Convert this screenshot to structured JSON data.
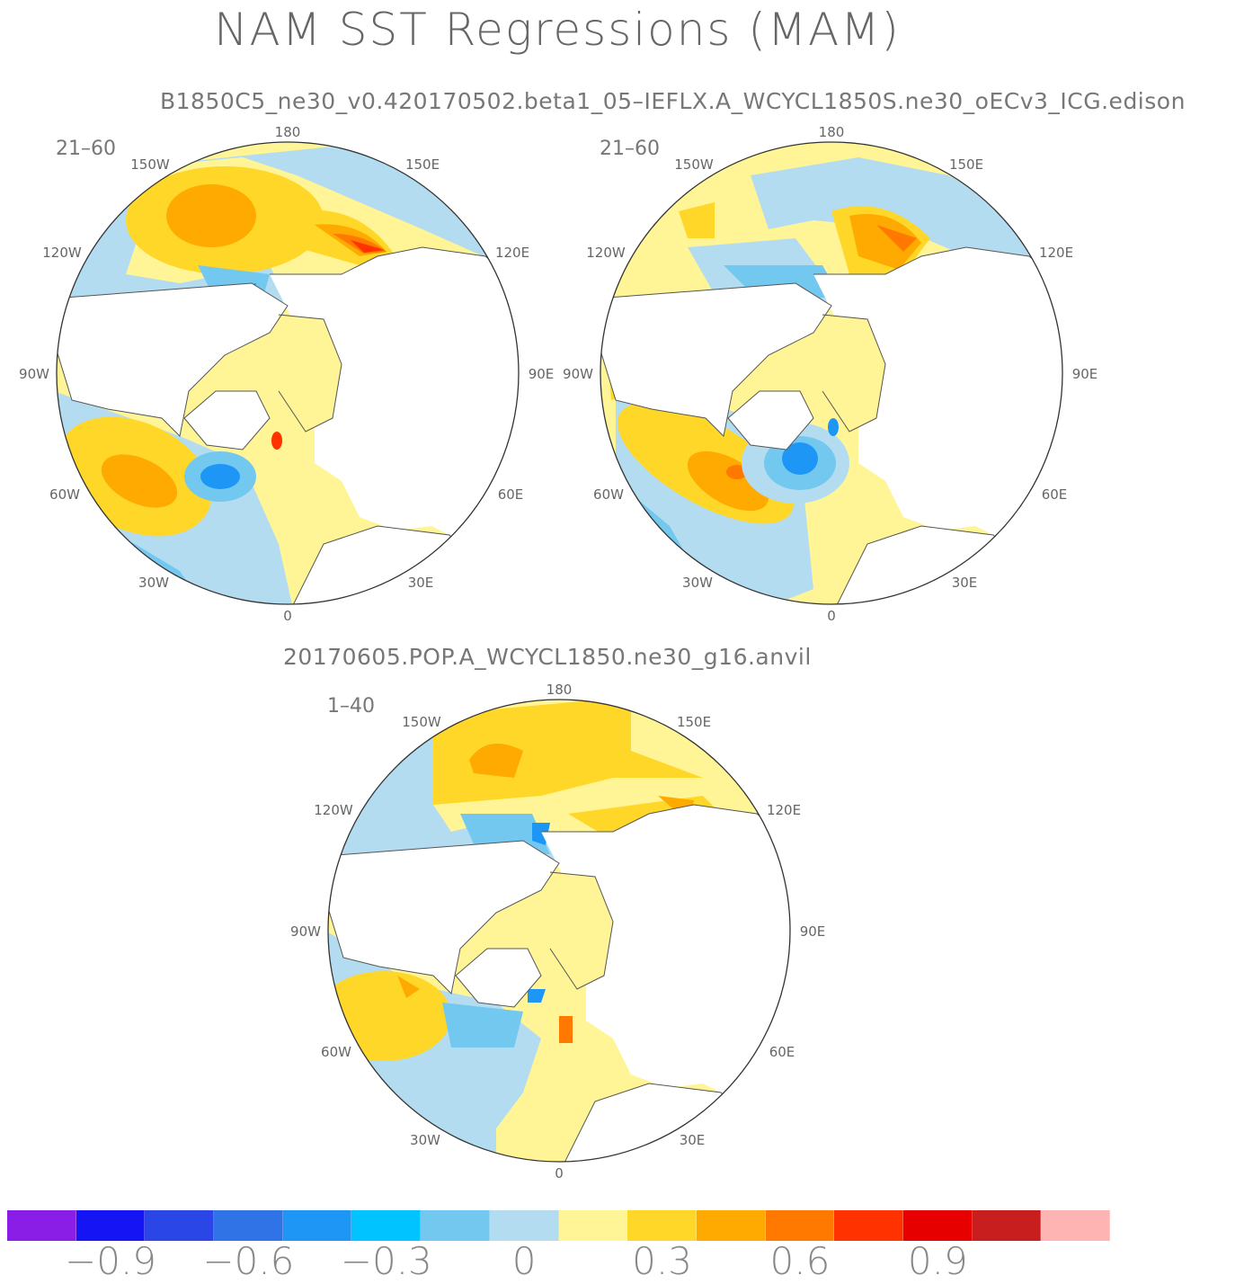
{
  "title": "NAM SST Regressions (MAM)",
  "top_case": "B1850C5_ne30_v0.420170502.beta1_05–IEFLX.A_WCYCL1850S.ne30_oECv3_ICG.edison",
  "bottom_case": "20170605.POP.A_WCYCL1850.ne30_g16.anvil",
  "panels": [
    {
      "id": "top-left",
      "period": "21–60"
    },
    {
      "id": "top-right",
      "period": "21–60"
    },
    {
      "id": "bottom",
      "period": "1–40"
    }
  ],
  "lon_labels": {
    "top": "180",
    "upper_left": "150W",
    "upper_right": "150E",
    "left_high": "120W",
    "right_high": "120E",
    "left_mid": "90W",
    "right_mid": "90E",
    "left_low": "60W",
    "right_low": "60E",
    "lower_left": "30W",
    "lower_right": "30E",
    "bottom": "0"
  },
  "colorbar": {
    "colors": [
      "#8b1ee6",
      "#1414f5",
      "#2a46e6",
      "#2f73e6",
      "#1e96f5",
      "#00c3ff",
      "#73c8f0",
      "#b4dcf0",
      "#fff596",
      "#ffd728",
      "#ffaa00",
      "#ff7800",
      "#ff3200",
      "#e60000",
      "#c81e1e",
      "#ffb4b4"
    ],
    "tick_labels": [
      "−0.9",
      "−0.6",
      "−0.3",
      "0",
      "0.3",
      "0.6",
      "0.9"
    ],
    "tick_values": [
      -0.9,
      -0.6,
      -0.3,
      0,
      0.3,
      0.6,
      0.9
    ]
  }
}
